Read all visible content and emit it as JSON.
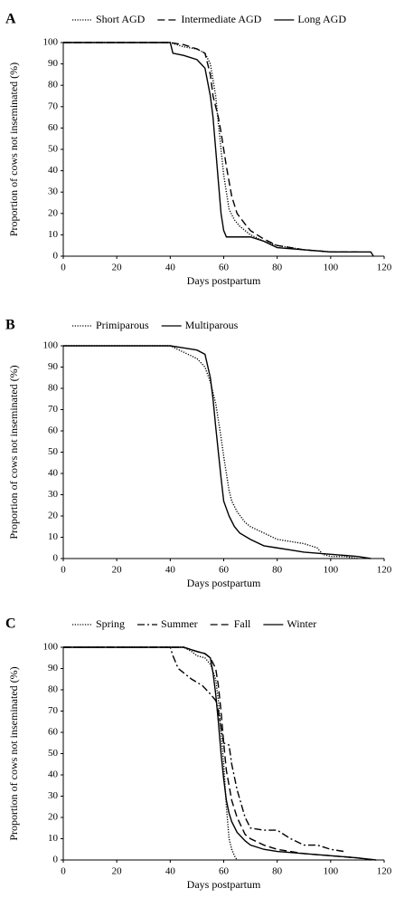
{
  "chart_data": [
    {
      "panel": "A",
      "type": "line",
      "x_label": "Days postpartum",
      "y_label": "Proportion of cows not inseminated (%)",
      "xlim": [
        0,
        120
      ],
      "ylim": [
        0,
        100
      ],
      "xticks": [
        0,
        20,
        40,
        60,
        80,
        100,
        120
      ],
      "yticks": [
        0,
        10,
        20,
        30,
        40,
        50,
        60,
        70,
        80,
        90,
        100
      ],
      "series": [
        {
          "name": "Short AGD",
          "color": "#000000",
          "dash": "dotted",
          "x": [
            0,
            40,
            45,
            50,
            53,
            55,
            57,
            58,
            59,
            60,
            61,
            62,
            64,
            66,
            70,
            75,
            80,
            90,
            100,
            105
          ],
          "values": [
            100,
            100,
            98,
            97,
            95,
            90,
            75,
            62,
            50,
            38,
            30,
            22,
            17,
            14,
            10,
            7,
            5,
            3,
            2,
            2
          ]
        },
        {
          "name": "Intermediate AGD",
          "color": "#000000",
          "dash": "dashed",
          "x": [
            0,
            40,
            45,
            50,
            53,
            55,
            56,
            57,
            58,
            59,
            60,
            61,
            62,
            63,
            65,
            68,
            70,
            75,
            80,
            90,
            100,
            110
          ],
          "values": [
            100,
            100,
            99,
            97,
            95,
            85,
            75,
            70,
            65,
            58,
            50,
            42,
            35,
            28,
            20,
            15,
            12,
            8,
            5,
            3,
            2,
            2
          ]
        },
        {
          "name": "Long AGD",
          "color": "#000000",
          "dash": "solid",
          "x": [
            0,
            40,
            41,
            45,
            50,
            53,
            55,
            56,
            57,
            58,
            59,
            60,
            61,
            62,
            65,
            70,
            75,
            80,
            90,
            100,
            115,
            116
          ],
          "values": [
            100,
            100,
            95,
            94,
            92,
            88,
            75,
            65,
            50,
            35,
            20,
            12,
            9,
            9,
            9,
            9,
            7,
            4,
            3,
            2,
            2,
            0
          ]
        }
      ]
    },
    {
      "panel": "B",
      "type": "line",
      "x_label": "Days postpartum",
      "y_label": "Proportion of cows not inseminated (%)",
      "xlim": [
        0,
        120
      ],
      "ylim": [
        0,
        100
      ],
      "xticks": [
        0,
        20,
        40,
        60,
        80,
        100,
        120
      ],
      "yticks": [
        0,
        10,
        20,
        30,
        40,
        50,
        60,
        70,
        80,
        90,
        100
      ],
      "series": [
        {
          "name": "Primiparous",
          "color": "#000000",
          "dash": "dotted",
          "x": [
            0,
            40,
            45,
            50,
            53,
            55,
            57,
            58,
            59,
            60,
            61,
            62,
            63,
            65,
            68,
            70,
            75,
            80,
            90,
            95,
            97,
            100,
            105,
            110
          ],
          "values": [
            100,
            100,
            97,
            94,
            90,
            83,
            73,
            65,
            57,
            48,
            40,
            32,
            27,
            22,
            17,
            15,
            12,
            9,
            7,
            5,
            2,
            1,
            1,
            0
          ]
        },
        {
          "name": "Multiparous",
          "color": "#000000",
          "dash": "solid",
          "x": [
            0,
            40,
            45,
            50,
            53,
            55,
            56,
            57,
            58,
            59,
            60,
            62,
            64,
            66,
            70,
            75,
            80,
            85,
            90,
            100,
            110,
            115
          ],
          "values": [
            100,
            100,
            99,
            98,
            96,
            85,
            75,
            62,
            50,
            38,
            27,
            20,
            15,
            12,
            9,
            6,
            5,
            4,
            3,
            2,
            1,
            0
          ]
        }
      ]
    },
    {
      "panel": "C",
      "type": "line",
      "x_label": "Days postpartum",
      "y_label": "Proportion of cows not inseminated (%)",
      "xlim": [
        0,
        120
      ],
      "ylim": [
        0,
        100
      ],
      "xticks": [
        0,
        20,
        40,
        60,
        80,
        100,
        120
      ],
      "yticks": [
        0,
        10,
        20,
        30,
        40,
        50,
        60,
        70,
        80,
        90,
        100
      ],
      "series": [
        {
          "name": "Spring",
          "color": "#000000",
          "dash": "dotted",
          "x": [
            0,
            45,
            48,
            50,
            53,
            55,
            57,
            58,
            59,
            60,
            61,
            62,
            63,
            64,
            65
          ],
          "values": [
            100,
            100,
            98,
            96,
            95,
            92,
            85,
            75,
            60,
            45,
            25,
            10,
            5,
            2,
            0
          ]
        },
        {
          "name": "Summer",
          "color": "#000000",
          "dash": "dashdot",
          "x": [
            0,
            40,
            41,
            43,
            45,
            48,
            52,
            55,
            57,
            58,
            59,
            60,
            62,
            63,
            65,
            68,
            70,
            75,
            80,
            85,
            90,
            95,
            100,
            105
          ],
          "values": [
            100,
            100,
            96,
            90,
            88,
            85,
            82,
            78,
            75,
            70,
            62,
            55,
            54,
            45,
            33,
            20,
            15,
            14,
            14,
            10,
            7,
            7,
            5,
            4
          ]
        },
        {
          "name": "Fall",
          "color": "#000000",
          "dash": "dashed",
          "x": [
            0,
            45,
            50,
            53,
            55,
            57,
            58,
            59,
            60,
            61,
            62,
            63,
            65,
            68,
            70,
            75,
            80,
            90,
            100,
            110,
            115
          ],
          "values": [
            100,
            100,
            98,
            97,
            95,
            90,
            82,
            70,
            55,
            42,
            35,
            28,
            20,
            12,
            10,
            7,
            5,
            3,
            2,
            1,
            0
          ]
        },
        {
          "name": "Winter",
          "color": "#000000",
          "dash": "solid",
          "x": [
            0,
            45,
            50,
            53,
            55,
            56,
            57,
            58,
            59,
            60,
            61,
            62,
            63,
            65,
            68,
            70,
            75,
            80,
            90,
            100,
            110,
            117
          ],
          "values": [
            100,
            100,
            98,
            97,
            95,
            88,
            78,
            65,
            50,
            38,
            28,
            22,
            18,
            13,
            9,
            7,
            5,
            4,
            3,
            2,
            1,
            0
          ]
        }
      ]
    }
  ]
}
